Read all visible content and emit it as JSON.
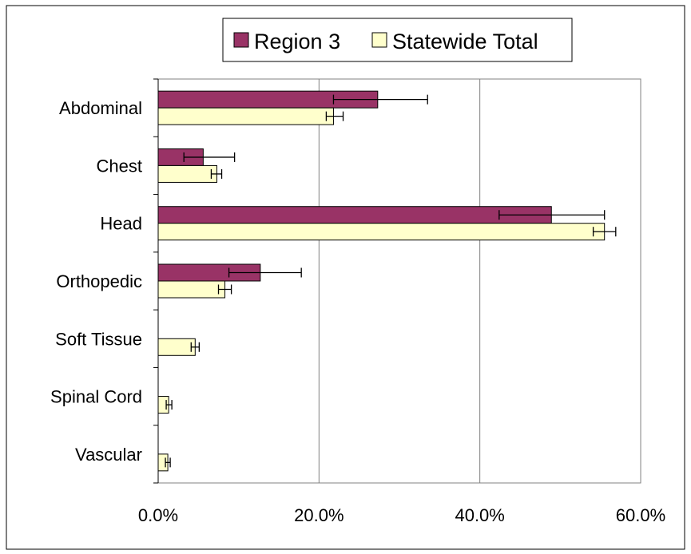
{
  "chart_data": {
    "type": "bar",
    "orientation": "horizontal",
    "categories": [
      "Abdominal",
      "Chest",
      "Head",
      "Orthopedic",
      "Soft Tissue",
      "Spinal Cord",
      "Vascular"
    ],
    "series": [
      {
        "name": "Region 3",
        "color": "#993366",
        "values": [
          27.3,
          5.6,
          48.9,
          12.7,
          0.0,
          0.0,
          0.0
        ],
        "error_low": [
          21.8,
          3.2,
          42.4,
          8.8,
          0.0,
          0.0,
          0.0
        ],
        "error_high": [
          33.5,
          9.5,
          55.5,
          17.8,
          0.0,
          0.0,
          0.0
        ]
      },
      {
        "name": "Statewide Total",
        "color": "#ffffcc",
        "values": [
          21.8,
          7.3,
          55.5,
          8.3,
          4.6,
          1.3,
          1.2
        ],
        "error_low": [
          20.9,
          6.6,
          54.1,
          7.5,
          4.1,
          1.0,
          0.9
        ],
        "error_high": [
          23.0,
          7.9,
          56.9,
          9.1,
          5.1,
          1.7,
          1.5
        ]
      }
    ],
    "x_ticks": [
      "0.0%",
      "20.0%",
      "40.0%",
      "60.0%"
    ],
    "xlim": [
      0,
      60
    ],
    "grid": "vertical",
    "legend_position": "top"
  }
}
